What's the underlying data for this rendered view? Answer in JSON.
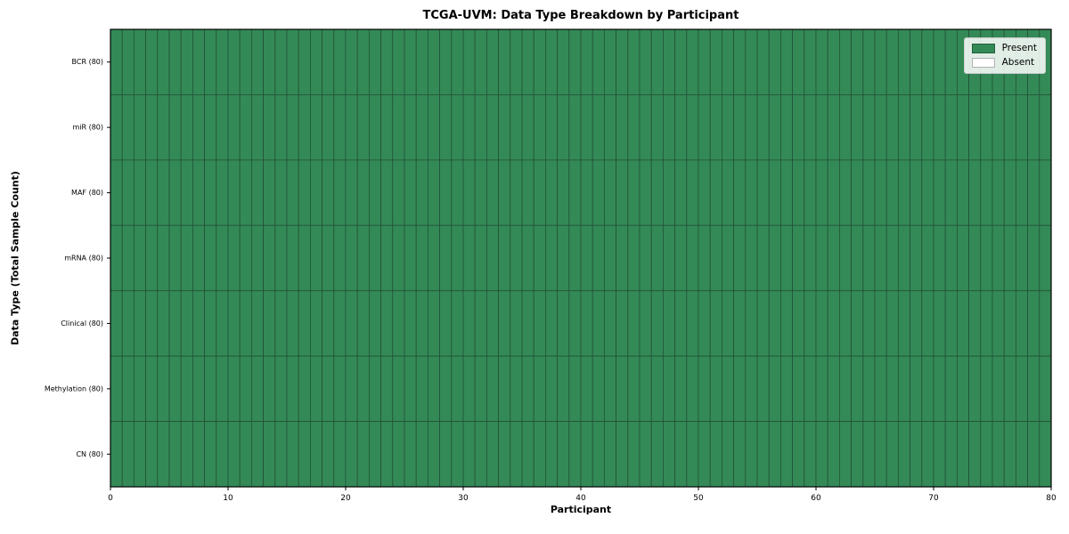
{
  "chart_data": {
    "type": "heatmap",
    "title": "TCGA-UVM: Data Type Breakdown by Participant",
    "xlabel": "Participant",
    "ylabel": "Data Type (Total Sample Count)",
    "xlim": [
      0,
      80
    ],
    "x_ticks": [
      0,
      10,
      20,
      30,
      40,
      50,
      60,
      70,
      80
    ],
    "n_participants": 80,
    "grid": true,
    "rows": [
      {
        "label": "BCR (80)",
        "data_type": "BCR",
        "total_samples": 80,
        "present_count": 80,
        "absent_count": 0
      },
      {
        "label": "miR (80)",
        "data_type": "miR",
        "total_samples": 80,
        "present_count": 80,
        "absent_count": 0
      },
      {
        "label": "MAF (80)",
        "data_type": "MAF",
        "total_samples": 80,
        "present_count": 80,
        "absent_count": 0
      },
      {
        "label": "mRNA (80)",
        "data_type": "mRNA",
        "total_samples": 80,
        "present_count": 80,
        "absent_count": 0
      },
      {
        "label": "Clinical (80)",
        "data_type": "Clinical",
        "total_samples": 80,
        "present_count": 80,
        "absent_count": 0
      },
      {
        "label": "Methylation (80)",
        "data_type": "Methylation",
        "total_samples": 80,
        "present_count": 80,
        "absent_count": 0
      },
      {
        "label": "CN (80)",
        "data_type": "CN",
        "total_samples": 80,
        "present_count": 80,
        "absent_count": 0
      }
    ],
    "legend": {
      "position": "upper right",
      "items": [
        {
          "label": "Present",
          "color": "#338a56"
        },
        {
          "label": "Absent",
          "color": "#ffffff"
        }
      ]
    },
    "colors": {
      "present": "#338a56",
      "absent": "#ffffff",
      "cell_edge": "#235238",
      "spine": "#000000"
    }
  }
}
